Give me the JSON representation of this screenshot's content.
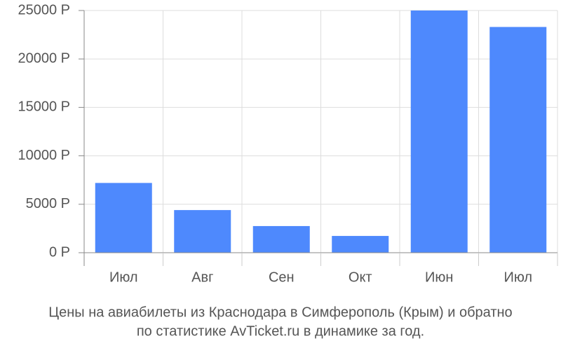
{
  "chart_data": {
    "type": "bar",
    "title": [
      "Цены на авиабилеты из Краснодара в Симферополь (Крым) и обратно",
      "по статистике AvTicket.ru в динамике за год."
    ],
    "categories": [
      "Июл",
      "Авг",
      "Сен",
      "Окт",
      "Июн",
      "Июл"
    ],
    "values": [
      7200,
      4400,
      2750,
      1730,
      25000,
      23300
    ],
    "color": "#4e89fd",
    "ylim": [
      0,
      25000
    ],
    "yticks": [
      {
        "value": 0,
        "label": "0 Р"
      },
      {
        "value": 5000,
        "label": "5000 Р"
      },
      {
        "value": 10000,
        "label": "10000 Р"
      },
      {
        "value": 15000,
        "label": "15000 Р"
      },
      {
        "value": 20000,
        "label": "20000 Р"
      },
      {
        "value": 25000,
        "label": "25000 Р"
      }
    ],
    "grid": true
  }
}
